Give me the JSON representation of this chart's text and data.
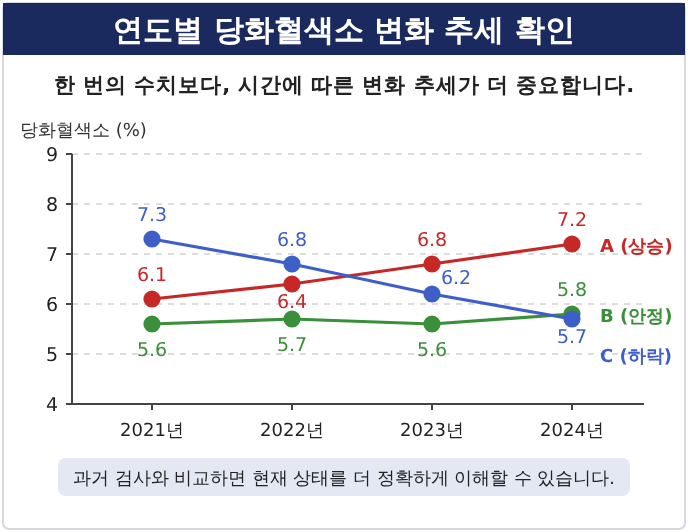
{
  "chart_data": {
    "type": "line",
    "title": "연도별 당화혈색소 변화 추세 확인",
    "subtitle": "한 번의 수치보다, 시간에 따른 변화 추세가 더 중요합니다.",
    "ylabel": "당화혈색소 (%)",
    "categories": [
      "2021년",
      "2022년",
      "2023년",
      "2024년"
    ],
    "series": [
      {
        "name": "A (상승)",
        "color": "#c62828",
        "values": [
          6.1,
          6.4,
          6.8,
          7.2
        ]
      },
      {
        "name": "B (안정)",
        "color": "#3a8f3a",
        "values": [
          5.6,
          5.7,
          5.6,
          5.8
        ]
      },
      {
        "name": "C (하락)",
        "color": "#3f5fc8",
        "values": [
          7.3,
          6.8,
          6.2,
          5.7
        ]
      }
    ],
    "ylim": [
      4,
      9
    ],
    "yticks": [
      4,
      5,
      6,
      7,
      8,
      9
    ],
    "grid": "y",
    "marker": "circle",
    "data_labels": true,
    "annotations": [
      "과거 검사와 비교하면 현재 상태를 더 정확하게 이해할 수 있습니다."
    ]
  }
}
